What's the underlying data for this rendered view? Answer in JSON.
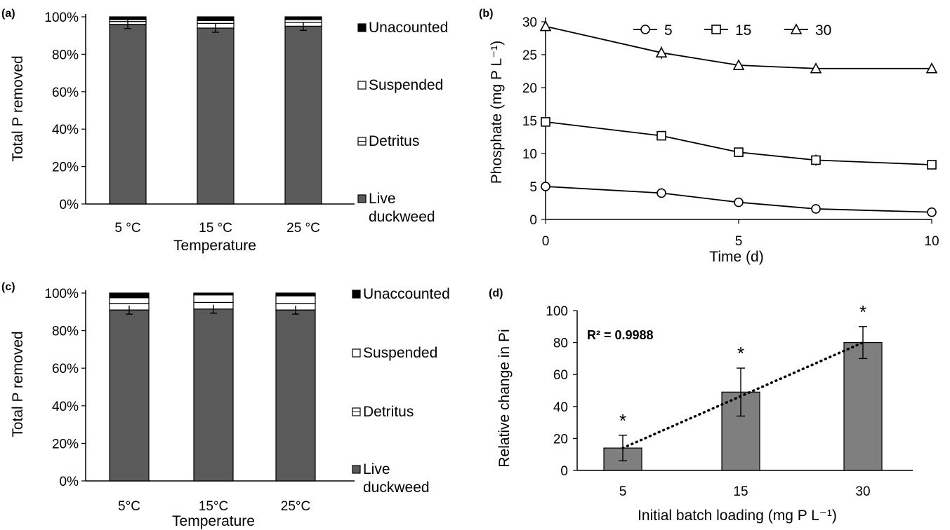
{
  "chart_data": [
    {
      "panel": "(a)",
      "type": "bar",
      "stacked": true,
      "xlabel": "Temperature",
      "ylabel": "Total P removed",
      "categories": [
        "5 °C",
        "15 °C",
        "25 °C"
      ],
      "yticks": [
        "0%",
        "20%",
        "40%",
        "60%",
        "80%",
        "100%"
      ],
      "ylim": [
        0,
        100
      ],
      "series": [
        {
          "name": "Live duckweed",
          "values": [
            96,
            94,
            95
          ],
          "color": "#5a5a5a"
        },
        {
          "name": "Detritus",
          "values": [
            1.5,
            2.5,
            2
          ],
          "color": "#ffffff"
        },
        {
          "name": "Suspended",
          "values": [
            1,
            1.5,
            1.5
          ],
          "color": "#ffffff"
        },
        {
          "name": "Unacounted",
          "values": [
            1.5,
            2,
            1.5
          ],
          "color": "#000000"
        }
      ],
      "legend_entries": [
        "Unacounted",
        "Suspended",
        "Detritus",
        "Live duckweed"
      ],
      "legend_placement": "right"
    },
    {
      "panel": "(b)",
      "type": "line",
      "xlabel": "Time (d)",
      "ylabel": "Phosphate (mg P L⁻¹)",
      "x": [
        0,
        3,
        5,
        7,
        10
      ],
      "xticks": [
        "0",
        "5",
        "10"
      ],
      "yticks": [
        "0",
        "5",
        "10",
        "15",
        "20",
        "25",
        "30"
      ],
      "xlim": [
        0,
        10
      ],
      "ylim": [
        0,
        30
      ],
      "series": [
        {
          "name": "5",
          "marker": "circle",
          "values": [
            5,
            4,
            2.6,
            1.6,
            1.1
          ]
        },
        {
          "name": "15",
          "marker": "square",
          "values": [
            14.8,
            12.7,
            10.2,
            9,
            8.3
          ]
        },
        {
          "name": "30",
          "marker": "triangle",
          "values": [
            29.3,
            25.3,
            23.4,
            22.9,
            22.9
          ]
        }
      ],
      "legend_placement": "top"
    },
    {
      "panel": "(c)",
      "type": "bar",
      "stacked": true,
      "xlabel": "Temperature",
      "ylabel": "Total P removed",
      "categories": [
        "5°C",
        "15°C",
        "25°C"
      ],
      "yticks": [
        "0%",
        "20%",
        "40%",
        "60%",
        "80%",
        "100%"
      ],
      "ylim": [
        0,
        100
      ],
      "series": [
        {
          "name": "Live duckweed",
          "values": [
            91,
            91.5,
            91
          ],
          "color": "#5a5a5a"
        },
        {
          "name": "Detritus",
          "values": [
            3.5,
            3.5,
            3.5
          ],
          "color": "#ffffff"
        },
        {
          "name": "Suspended",
          "values": [
            3,
            4,
            4
          ],
          "color": "#ffffff"
        },
        {
          "name": "Unacounted",
          "values": [
            2.5,
            1,
            1.5
          ],
          "color": "#000000"
        }
      ],
      "legend_entries": [
        "Unaccounted",
        "Suspended",
        "Detritus",
        "Live duckweed"
      ],
      "legend_placement": "right"
    },
    {
      "panel": "(d)",
      "type": "bar",
      "xlabel": "Initial batch loading (mg P L⁻¹)",
      "ylabel": "Relative change in Pi",
      "categories": [
        "5",
        "15",
        "30"
      ],
      "values": [
        14,
        49,
        80
      ],
      "errors": [
        8,
        15,
        10
      ],
      "yticks": [
        "0",
        "20",
        "40",
        "60",
        "80",
        "100"
      ],
      "ylim": [
        0,
        100
      ],
      "annotation": "R² = 0.9988",
      "significance_marker": "*",
      "trendline": "linear, dotted",
      "color": "#7f7f7f"
    }
  ]
}
